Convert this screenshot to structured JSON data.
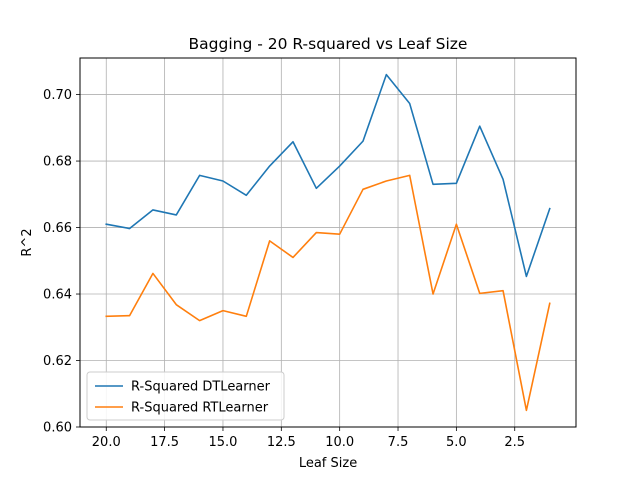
{
  "chart_data": {
    "type": "line",
    "title": "Bagging - 20 R-squared vs Leaf Size",
    "xlabel": "Leaf Size",
    "ylabel": "R^2",
    "x": [
      20,
      19,
      18,
      17,
      16,
      15,
      14,
      13,
      12,
      11,
      10,
      9,
      8,
      7,
      6,
      5,
      4,
      3,
      2,
      1
    ],
    "xlim": [
      21.125,
      -0.125
    ],
    "ylim": [
      0.6,
      0.711
    ],
    "xticks": [
      20.0,
      17.5,
      15.0,
      12.5,
      10.0,
      7.5,
      5.0,
      2.5
    ],
    "xtick_labels": [
      "20.0",
      "17.5",
      "15.0",
      "12.5",
      "10.0",
      "7.5",
      "5.0",
      "2.5"
    ],
    "yticks": [
      0.6,
      0.62,
      0.64,
      0.66,
      0.68,
      0.7
    ],
    "ytick_labels": [
      "0.60",
      "0.62",
      "0.64",
      "0.66",
      "0.68",
      "0.70"
    ],
    "grid": true,
    "legend_position": "lower-left",
    "series": [
      {
        "name": "R-Squared DTLearner",
        "color": "#1f77b4",
        "values": [
          0.661,
          0.6597,
          0.6653,
          0.6638,
          0.6757,
          0.674,
          0.6697,
          0.6785,
          0.6858,
          0.6718,
          0.6785,
          0.686,
          0.706,
          0.6973,
          0.673,
          0.6733,
          0.6905,
          0.6745,
          0.6453,
          0.6657
        ]
      },
      {
        "name": "R-Squared RTLearner",
        "color": "#ff7f0e",
        "values": [
          0.6333,
          0.6335,
          0.6462,
          0.6368,
          0.632,
          0.635,
          0.6333,
          0.656,
          0.651,
          0.6585,
          0.658,
          0.6715,
          0.674,
          0.6757,
          0.64,
          0.661,
          0.6402,
          0.641,
          0.605,
          0.6372
        ]
      }
    ]
  }
}
